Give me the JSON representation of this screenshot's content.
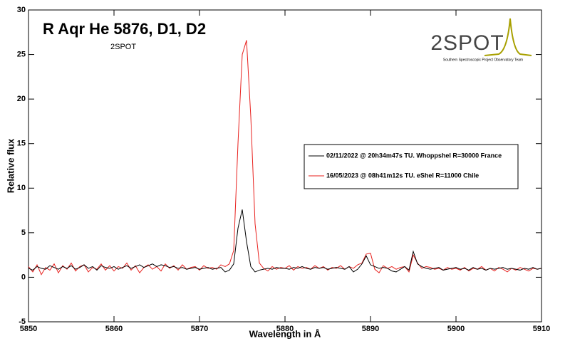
{
  "chart_data": {
    "type": "line",
    "title": "R Aqr He 5876, D1, D2",
    "subtitle": "2SPOT",
    "logo": {
      "name": "2SPOT",
      "caption": "Southern Spectroscopic Project Observatory Team"
    },
    "x_label": "Wavelength in Å",
    "y_label": "Relative flux",
    "xlim": [
      5850,
      5910
    ],
    "xticks": [
      5850,
      5860,
      5870,
      5880,
      5890,
      5900,
      5910
    ],
    "ylim": [
      -5,
      30
    ],
    "yticks": [
      -5,
      0,
      5,
      10,
      15,
      20,
      25,
      30
    ],
    "legend_position": "right",
    "x": [
      5850,
      5850.5,
      5851,
      5851.5,
      5852,
      5852.5,
      5853,
      5853.5,
      5854,
      5854.5,
      5855,
      5855.5,
      5856,
      5856.5,
      5857,
      5857.5,
      5858,
      5858.5,
      5859,
      5859.5,
      5860,
      5860.5,
      5861,
      5861.5,
      5862,
      5862.5,
      5863,
      5863.5,
      5864,
      5864.5,
      5865,
      5865.5,
      5866,
      5866.5,
      5867,
      5867.5,
      5868,
      5868.5,
      5869,
      5869.5,
      5870,
      5870.5,
      5871,
      5871.5,
      5872,
      5872.5,
      5873,
      5873.5,
      5874,
      5874.5,
      5875,
      5875.5,
      5876,
      5876.5,
      5877,
      5877.5,
      5878,
      5878.5,
      5879,
      5879.5,
      5880,
      5880.5,
      5881,
      5881.5,
      5882,
      5882.5,
      5883,
      5883.5,
      5884,
      5884.5,
      5885,
      5885.5,
      5886,
      5886.5,
      5887,
      5887.5,
      5888,
      5888.5,
      5889,
      5889.5,
      5890,
      5890.5,
      5891,
      5891.5,
      5892,
      5892.5,
      5893,
      5893.5,
      5894,
      5894.5,
      5895,
      5895.5,
      5896,
      5896.5,
      5897,
      5897.5,
      5898,
      5898.5,
      5899,
      5899.5,
      5900,
      5900.5,
      5901,
      5901.5,
      5902,
      5902.5,
      5903,
      5903.5,
      5904,
      5904.5,
      5905,
      5905.5,
      5906,
      5906.5,
      5907,
      5907.5,
      5908,
      5908.5,
      5909,
      5909.5,
      5910
    ],
    "series": [
      {
        "name": "02/11/2022 @ 20h34m47s TU.  Whoppshel R=30000 France",
        "color": "#000000",
        "values": [
          1.0,
          0.8,
          1.2,
          1.0,
          0.9,
          1.3,
          1.1,
          0.9,
          1.2,
          1.0,
          1.3,
          0.9,
          1.1,
          1.4,
          1.0,
          1.2,
          0.8,
          1.3,
          1.1,
          1.0,
          1.2,
          0.9,
          1.1,
          1.3,
          1.0,
          1.2,
          1.4,
          1.1,
          1.3,
          1.5,
          1.2,
          1.4,
          1.3,
          1.1,
          1.2,
          1.0,
          1.1,
          0.9,
          1.0,
          1.1,
          0.9,
          1.0,
          1.1,
          0.9,
          1.0,
          1.1,
          0.6,
          0.8,
          1.5,
          5.5,
          7.6,
          4.0,
          1.2,
          0.6,
          0.8,
          0.9,
          1.0,
          0.9,
          1.1,
          1.0,
          1.0,
          0.9,
          1.1,
          1.0,
          1.2,
          1.0,
          0.9,
          1.1,
          1.0,
          1.1,
          0.9,
          1.0,
          1.1,
          1.0,
          0.9,
          1.2,
          0.6,
          0.9,
          1.5,
          2.4,
          1.4,
          1.2,
          1.0,
          1.1,
          1.0,
          0.7,
          0.6,
          0.9,
          1.2,
          0.8,
          2.9,
          1.5,
          1.2,
          1.0,
          0.9,
          1.0,
          1.1,
          0.8,
          0.9,
          1.0,
          1.1,
          0.9,
          1.0,
          0.8,
          1.1,
          0.9,
          1.0,
          0.8,
          1.0,
          0.9,
          1.0,
          1.1,
          0.9,
          1.0,
          0.9,
          0.8,
          1.0,
          0.9,
          1.1,
          0.9,
          1.0
        ]
      },
      {
        "name": "16/05/2023 @ 08h41m12s TU.  eShel R=11000 Chile",
        "color": "#e8211e",
        "values": [
          1.2,
          0.6,
          1.4,
          0.3,
          1.1,
          0.8,
          1.5,
          0.5,
          1.3,
          0.9,
          1.6,
          0.7,
          1.2,
          1.4,
          0.6,
          1.1,
          0.9,
          1.5,
          0.8,
          1.3,
          0.7,
          1.2,
          1.0,
          1.6,
          0.8,
          1.3,
          0.5,
          1.1,
          1.4,
          0.9,
          1.2,
          0.7,
          1.5,
          1.0,
          1.3,
          0.8,
          1.4,
          0.9,
          1.1,
          1.2,
          0.8,
          1.3,
          1.0,
          1.1,
          0.9,
          1.4,
          1.2,
          1.5,
          3.0,
          15.0,
          25.0,
          26.6,
          18.0,
          6.0,
          1.6,
          1.0,
          0.7,
          1.2,
          0.9,
          1.1,
          1.0,
          1.3,
          0.8,
          1.2,
          1.0,
          1.1,
          0.9,
          1.3,
          1.0,
          1.2,
          0.8,
          1.1,
          1.0,
          1.3,
          0.9,
          1.2,
          1.0,
          1.4,
          1.6,
          2.6,
          2.7,
          0.9,
          0.5,
          1.3,
          1.0,
          1.2,
          0.9,
          1.1,
          1.2,
          0.6,
          2.5,
          1.6,
          1.0,
          1.2,
          1.1,
          0.9,
          1.0,
          0.8,
          1.1,
          0.9,
          1.0,
          0.8,
          1.1,
          0.7,
          1.0,
          0.9,
          1.2,
          0.8,
          1.0,
          0.7,
          1.1,
          0.9,
          0.6,
          1.0,
          0.8,
          1.1,
          0.9,
          0.7,
          1.0,
          0.9,
          1.0
        ]
      }
    ]
  }
}
